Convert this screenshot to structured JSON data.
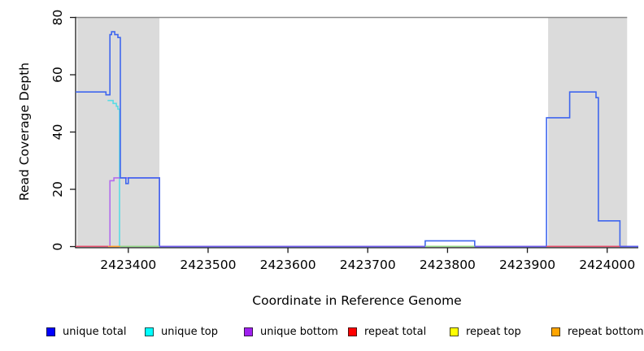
{
  "chart_data": {
    "type": "line",
    "title": "",
    "xlabel": "Coordinate in Reference Genome",
    "ylabel": "Read Coverage Depth",
    "xlim": [
      2423334,
      2424039
    ],
    "ylim": [
      0,
      80
    ],
    "x_ticks": [
      2423400,
      2423500,
      2423600,
      2423700,
      2423800,
      2423900,
      2424000
    ],
    "y_ticks": [
      0,
      20,
      40,
      60,
      80
    ],
    "grid": false,
    "legend_position": "bottom",
    "region_color": "#dbdbdb",
    "highlight_regions": [
      [
        2423336,
        2423439
      ],
      [
        2423926,
        2424025
      ]
    ],
    "cap_line": {
      "depth": 80,
      "start": 2423334,
      "end": 2424025,
      "color": "#8a8a8a"
    },
    "series": [
      {
        "name": "unique top",
        "color": "#5adbe4",
        "steps": [
          [
            2423374,
            2423381,
            51
          ],
          [
            2423381,
            2423385,
            50
          ],
          [
            2423385,
            2423387,
            49
          ],
          [
            2423387,
            2423389,
            48
          ],
          [
            2423389,
            2423391,
            0
          ]
        ]
      },
      {
        "name": "unique bottom",
        "color": "#b36ced",
        "steps": [
          [
            2423376,
            2423377,
            0
          ],
          [
            2423377,
            2423382,
            23
          ],
          [
            2423382,
            2423439,
            24
          ],
          [
            2423439,
            2423441,
            0
          ]
        ]
      },
      {
        "name": "unique total",
        "color": "#3f66ee",
        "steps": [
          [
            2423334,
            2423372,
            54
          ],
          [
            2423372,
            2423377,
            53
          ],
          [
            2423377,
            2423379,
            74
          ],
          [
            2423379,
            2423383,
            75
          ],
          [
            2423383,
            2423387,
            74
          ],
          [
            2423387,
            2423390,
            73
          ],
          [
            2423390,
            2423397,
            24
          ],
          [
            2423397,
            2423400,
            22
          ],
          [
            2423400,
            2423439,
            24
          ],
          [
            2423439,
            2423772,
            0
          ],
          [
            2423772,
            2423834,
            2
          ],
          [
            2423834,
            2423924,
            0
          ],
          [
            2423924,
            2423953,
            45
          ],
          [
            2423953,
            2423986,
            54
          ],
          [
            2423986,
            2423989,
            52
          ],
          [
            2423989,
            2424016,
            9
          ],
          [
            2424016,
            2424039,
            0
          ]
        ]
      }
    ],
    "zero_line_segments": [
      {
        "color": "#e4506e",
        "start": 2423334,
        "end": 2423375
      },
      {
        "color": "#ff9e2c",
        "start": 2423375,
        "end": 2423390
      },
      {
        "color": "#93d687",
        "start": 2423390,
        "end": 2423439
      },
      {
        "color": "#6f5ae8",
        "start": 2423439,
        "end": 2423772
      },
      {
        "color": "#93d687",
        "start": 2423772,
        "end": 2423834
      },
      {
        "color": "#6f5ae8",
        "start": 2423834,
        "end": 2423924
      },
      {
        "color": "#e4506e",
        "start": 2423924,
        "end": 2424016
      },
      {
        "color": "#5b5bec",
        "start": 2424016,
        "end": 2424039
      }
    ],
    "legend": [
      {
        "label": "unique total",
        "color": "#0000ff"
      },
      {
        "label": "unique top",
        "color": "#00ffff"
      },
      {
        "label": "unique bottom",
        "color": "#a020f0"
      },
      {
        "label": "repeat total",
        "color": "#ff0000"
      },
      {
        "label": "repeat top",
        "color": "#ffff00"
      },
      {
        "label": "repeat bottom",
        "color": "#ffa500"
      }
    ]
  }
}
